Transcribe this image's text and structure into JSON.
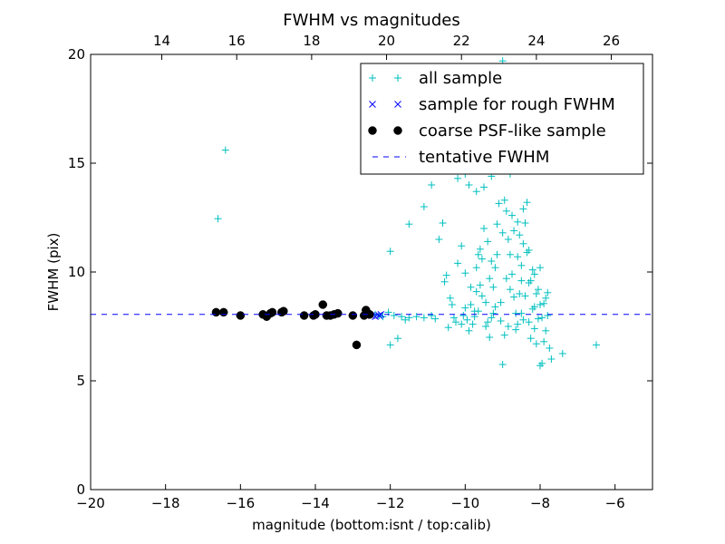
{
  "chart_data": {
    "type": "scatter",
    "title": "FWHM vs magnitudes",
    "xlabel": "magnitude (bottom:isnt / top:calib)",
    "ylabel": "FWHM (pix)",
    "xlim": [
      -20,
      -5
    ],
    "ylim": [
      0,
      20
    ],
    "top_axis": {
      "offset": 32.1,
      "ticks": [
        14,
        16,
        18,
        20,
        22,
        24,
        26
      ]
    },
    "xticks": [
      -20,
      -18,
      -16,
      -14,
      -12,
      -10,
      -8,
      -6
    ],
    "yticks": [
      0,
      5,
      10,
      15,
      20
    ],
    "legend_position": "upper right",
    "grid": false,
    "series": [
      {
        "name": "all sample",
        "marker": "plus",
        "color": "#00bfbf",
        "points": [
          [
            -16.4,
            15.6
          ],
          [
            -16.6,
            12.45
          ],
          [
            -12.0,
            10.95
          ],
          [
            -11.5,
            12.2
          ],
          [
            -11.1,
            13.0
          ],
          [
            -10.9,
            14.0
          ],
          [
            -10.5,
            14.8
          ],
          [
            -10.2,
            14.3
          ],
          [
            -10.0,
            14.5
          ],
          [
            -9.9,
            14.0
          ],
          [
            -9.7,
            13.7
          ],
          [
            -9.5,
            13.9
          ],
          [
            -9.3,
            14.4
          ],
          [
            -8.8,
            14.5
          ],
          [
            -11.8,
            6.95
          ],
          [
            -12.0,
            6.65
          ],
          [
            -12.05,
            8.15
          ],
          [
            -11.9,
            8.0
          ],
          [
            -11.7,
            7.95
          ],
          [
            -11.5,
            7.9
          ],
          [
            -11.3,
            7.95
          ],
          [
            -11.1,
            7.9
          ],
          [
            -10.9,
            8.0
          ],
          [
            -10.8,
            7.85
          ],
          [
            -10.6,
            12.25
          ],
          [
            -10.7,
            11.5
          ],
          [
            -10.5,
            9.85
          ],
          [
            -10.55,
            9.55
          ],
          [
            -10.4,
            8.8
          ],
          [
            -10.35,
            8.5
          ],
          [
            -10.2,
            10.4
          ],
          [
            -10.1,
            11.2
          ],
          [
            -10.0,
            9.95
          ],
          [
            -10.05,
            8.0
          ],
          [
            -9.95,
            7.8
          ],
          [
            -9.9,
            7.3
          ],
          [
            -9.8,
            7.6
          ],
          [
            -9.75,
            8.2
          ],
          [
            -9.7,
            9.1
          ],
          [
            -9.6,
            11.05
          ],
          [
            -9.55,
            10.6
          ],
          [
            -9.5,
            12.0
          ],
          [
            -9.45,
            8.6
          ],
          [
            -9.4,
            7.7
          ],
          [
            -9.35,
            7.0
          ],
          [
            -9.3,
            7.9
          ],
          [
            -9.25,
            9.3
          ],
          [
            -9.2,
            10.2
          ],
          [
            -9.15,
            12.2
          ],
          [
            -9.1,
            13.15
          ],
          [
            -9.05,
            8.6
          ],
          [
            -9.0,
            5.75
          ],
          [
            -8.95,
            7.1
          ],
          [
            -8.9,
            9.7
          ],
          [
            -8.85,
            11.5
          ],
          [
            -8.8,
            10.8
          ],
          [
            -8.75,
            9.9
          ],
          [
            -8.7,
            8.85
          ],
          [
            -8.65,
            8.1
          ],
          [
            -8.6,
            7.6
          ],
          [
            -8.55,
            9.0
          ],
          [
            -8.5,
            10.3
          ],
          [
            -8.45,
            11.3
          ],
          [
            -8.4,
            12.25
          ],
          [
            -8.35,
            13.2
          ],
          [
            -8.3,
            11.0
          ],
          [
            -8.25,
            9.6
          ],
          [
            -8.2,
            8.3
          ],
          [
            -8.15,
            7.4
          ],
          [
            -8.1,
            6.7
          ],
          [
            -8.05,
            9.2
          ],
          [
            -8.0,
            8.5
          ],
          [
            -7.95,
            7.9
          ],
          [
            -7.9,
            6.8
          ],
          [
            -7.85,
            7.3
          ],
          [
            -7.8,
            8.0
          ],
          [
            -7.75,
            6.5
          ],
          [
            -8.0,
            5.7
          ],
          [
            -7.95,
            5.8
          ],
          [
            -7.7,
            6.0
          ],
          [
            -7.4,
            6.25
          ],
          [
            -6.5,
            6.65
          ],
          [
            -9.7,
            10.2
          ],
          [
            -9.6,
            9.4
          ],
          [
            -9.3,
            10.5
          ],
          [
            -9.0,
            11.8
          ],
          [
            -8.9,
            12.8
          ],
          [
            -8.7,
            11.9
          ],
          [
            -8.6,
            10.7
          ],
          [
            -8.5,
            9.6
          ],
          [
            -8.4,
            8.9
          ],
          [
            -8.3,
            7.7
          ],
          [
            -8.2,
            10.1
          ],
          [
            -8.1,
            9.0
          ],
          [
            -8.05,
            7.85
          ],
          [
            -7.9,
            8.55
          ],
          [
            -7.8,
            9.05
          ],
          [
            -10.3,
            7.9
          ],
          [
            -10.1,
            7.6
          ],
          [
            -9.85,
            8.5
          ],
          [
            -9.65,
            8.2
          ],
          [
            -9.45,
            7.5
          ],
          [
            -9.25,
            8.1
          ],
          [
            -9.05,
            7.75
          ],
          [
            -8.85,
            7.5
          ],
          [
            -8.65,
            7.35
          ],
          [
            -8.45,
            7.8
          ],
          [
            -8.25,
            6.95
          ],
          [
            -8.15,
            9.9
          ],
          [
            -8.35,
            10.9
          ],
          [
            -8.55,
            11.7
          ],
          [
            -8.75,
            12.6
          ],
          [
            -8.95,
            13.3
          ],
          [
            -9.15,
            10.8
          ],
          [
            -9.35,
            9.7
          ],
          [
            -9.55,
            8.9
          ],
          [
            -9.75,
            7.95
          ],
          [
            -8.0,
            10.2
          ],
          [
            -8.15,
            8.4
          ],
          [
            -8.3,
            9.5
          ],
          [
            -8.5,
            8.1
          ],
          [
            -9.1,
            15.2
          ],
          [
            -8.95,
            15.8
          ],
          [
            -9.0,
            19.7
          ],
          [
            -11.6,
            7.8
          ],
          [
            -12.3,
            8.0
          ],
          [
            -12.4,
            8.05
          ],
          [
            -12.2,
            7.95
          ],
          [
            -7.85,
            8.8
          ],
          [
            -8.45,
            12.9
          ],
          [
            -8.6,
            12.3
          ],
          [
            -8.8,
            9.2
          ],
          [
            -9.2,
            8.4
          ],
          [
            -9.4,
            11.4
          ],
          [
            -9.65,
            10.8
          ],
          [
            -9.85,
            9.3
          ],
          [
            -10.0,
            8.35
          ],
          [
            -10.25,
            7.7
          ],
          [
            -10.45,
            7.45
          ]
        ]
      },
      {
        "name": "sample for rough FWHM",
        "marker": "x",
        "color": "#0000ff",
        "points": [
          [
            -12.3,
            8.0
          ],
          [
            -12.4,
            7.95
          ],
          [
            -12.25,
            8.05
          ],
          [
            -12.5,
            8.0
          ]
        ]
      },
      {
        "name": "coarse PSF-like sample",
        "marker": "circle",
        "color": "#000000",
        "points": [
          [
            -16.65,
            8.15
          ],
          [
            -16.45,
            8.15
          ],
          [
            -16.0,
            8.0
          ],
          [
            -15.4,
            8.05
          ],
          [
            -15.3,
            7.95
          ],
          [
            -15.2,
            8.1
          ],
          [
            -15.15,
            8.15
          ],
          [
            -14.9,
            8.15
          ],
          [
            -14.85,
            8.2
          ],
          [
            -14.3,
            8.0
          ],
          [
            -14.05,
            8.0
          ],
          [
            -14.0,
            8.05
          ],
          [
            -13.8,
            8.5
          ],
          [
            -13.7,
            8.0
          ],
          [
            -13.6,
            8.0
          ],
          [
            -13.5,
            8.05
          ],
          [
            -13.4,
            8.1
          ],
          [
            -13.0,
            8.0
          ],
          [
            -12.9,
            6.65
          ],
          [
            -12.7,
            8.0
          ],
          [
            -12.65,
            8.25
          ],
          [
            -12.6,
            8.1
          ],
          [
            -12.55,
            8.05
          ]
        ]
      },
      {
        "name": "tentative FWHM",
        "marker": "dashed-line",
        "color": "#0000ff",
        "y_value": 8.05
      }
    ]
  }
}
